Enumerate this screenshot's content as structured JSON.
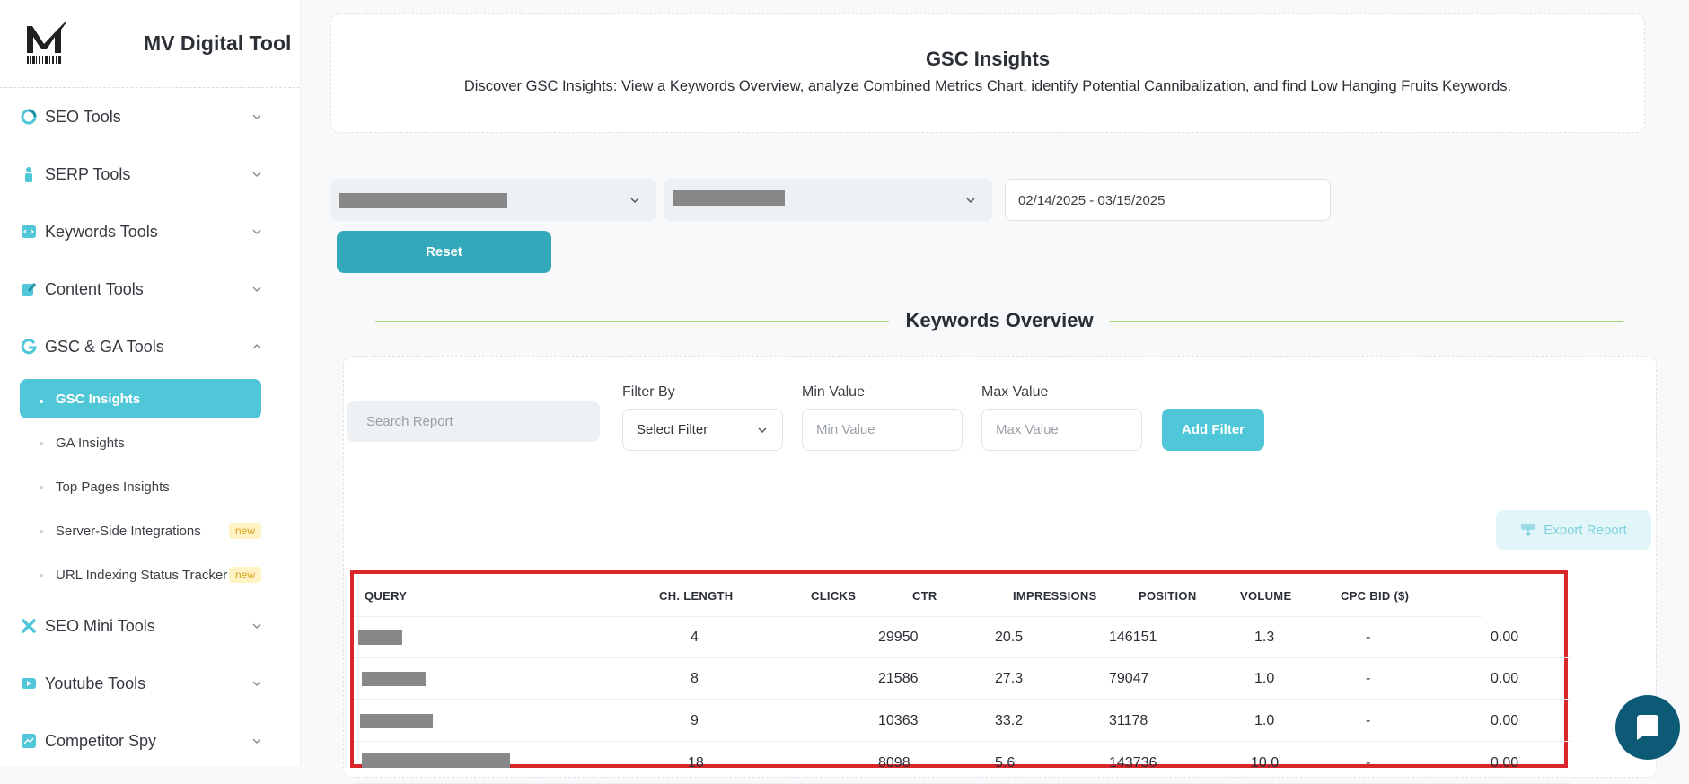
{
  "app": {
    "brand_name": "MV Digital Tool"
  },
  "sidebar": {
    "items": [
      {
        "label": "SEO Tools",
        "icon": "pie-chart-icon",
        "color": "#4fc7d9"
      },
      {
        "label": "SERP Tools",
        "icon": "person-icon",
        "color": "#4fc7d9"
      },
      {
        "label": "Keywords Tools",
        "icon": "code-window-icon",
        "color": "#4fc7d9"
      },
      {
        "label": "Content Tools",
        "icon": "pencil-icon",
        "color": "#4fc7d9"
      },
      {
        "label": "GSC & GA Tools",
        "icon": "g-logo-icon",
        "color": "#4fc7d9",
        "expanded": true
      },
      {
        "label": "SEO Mini Tools",
        "icon": "cross-tools-icon",
        "color": "#4fc7d9"
      },
      {
        "label": "Youtube Tools",
        "icon": "video-icon",
        "color": "#4fc7d9"
      },
      {
        "label": "Competitor Spy",
        "icon": "trend-chart-icon",
        "color": "#4fc7d9"
      }
    ],
    "subitems": [
      {
        "label": "GSC Insights",
        "active": true
      },
      {
        "label": "GA Insights"
      },
      {
        "label": "Top Pages Insights"
      },
      {
        "label": "Server-Side Integrations",
        "badge": "new"
      },
      {
        "label": "URL Indexing Status Tracker",
        "badge": "new"
      }
    ]
  },
  "header": {
    "title": "GSC Insights",
    "description": "Discover GSC Insights: View a Keywords Overview, analyze Combined Metrics Chart, identify Potential Cannibalization, and find Low Hanging Fruits Keywords."
  },
  "controls": {
    "date_range": "02/14/2025 - 03/15/2025",
    "reset_label": "Reset"
  },
  "overview": {
    "title": "Keywords Overview",
    "search_placeholder": "Search Report",
    "filter_by_label": "Filter By",
    "filter_select_value": "Select Filter",
    "min_label": "Min Value",
    "min_placeholder": "Min Value",
    "max_label": "Max Value",
    "max_placeholder": "Max Value",
    "add_filter_label": "Add Filter",
    "export_label": "Export Report"
  },
  "table": {
    "columns": [
      "QUERY",
      "CH. LENGTH",
      "CLICKS",
      "CTR",
      "IMPRESSIONS",
      "POSITION",
      "VOLUME",
      "CPC BID ($)"
    ],
    "rows": [
      {
        "ch_length": "4",
        "clicks": "29950",
        "ctr": "20.5",
        "impressions": "146151",
        "position": "1.3",
        "volume": "-",
        "cpc": "0.00"
      },
      {
        "ch_length": "8",
        "clicks": "21586",
        "ctr": "27.3",
        "impressions": "79047",
        "position": "1.0",
        "volume": "-",
        "cpc": "0.00"
      },
      {
        "ch_length": "9",
        "clicks": "10363",
        "ctr": "33.2",
        "impressions": "31178",
        "position": "1.0",
        "volume": "-",
        "cpc": "0.00"
      },
      {
        "ch_length": "18",
        "clicks": "8098",
        "ctr": "5.6",
        "impressions": "143736",
        "position": "10.0",
        "volume": "-",
        "cpc": "0.00"
      }
    ]
  }
}
